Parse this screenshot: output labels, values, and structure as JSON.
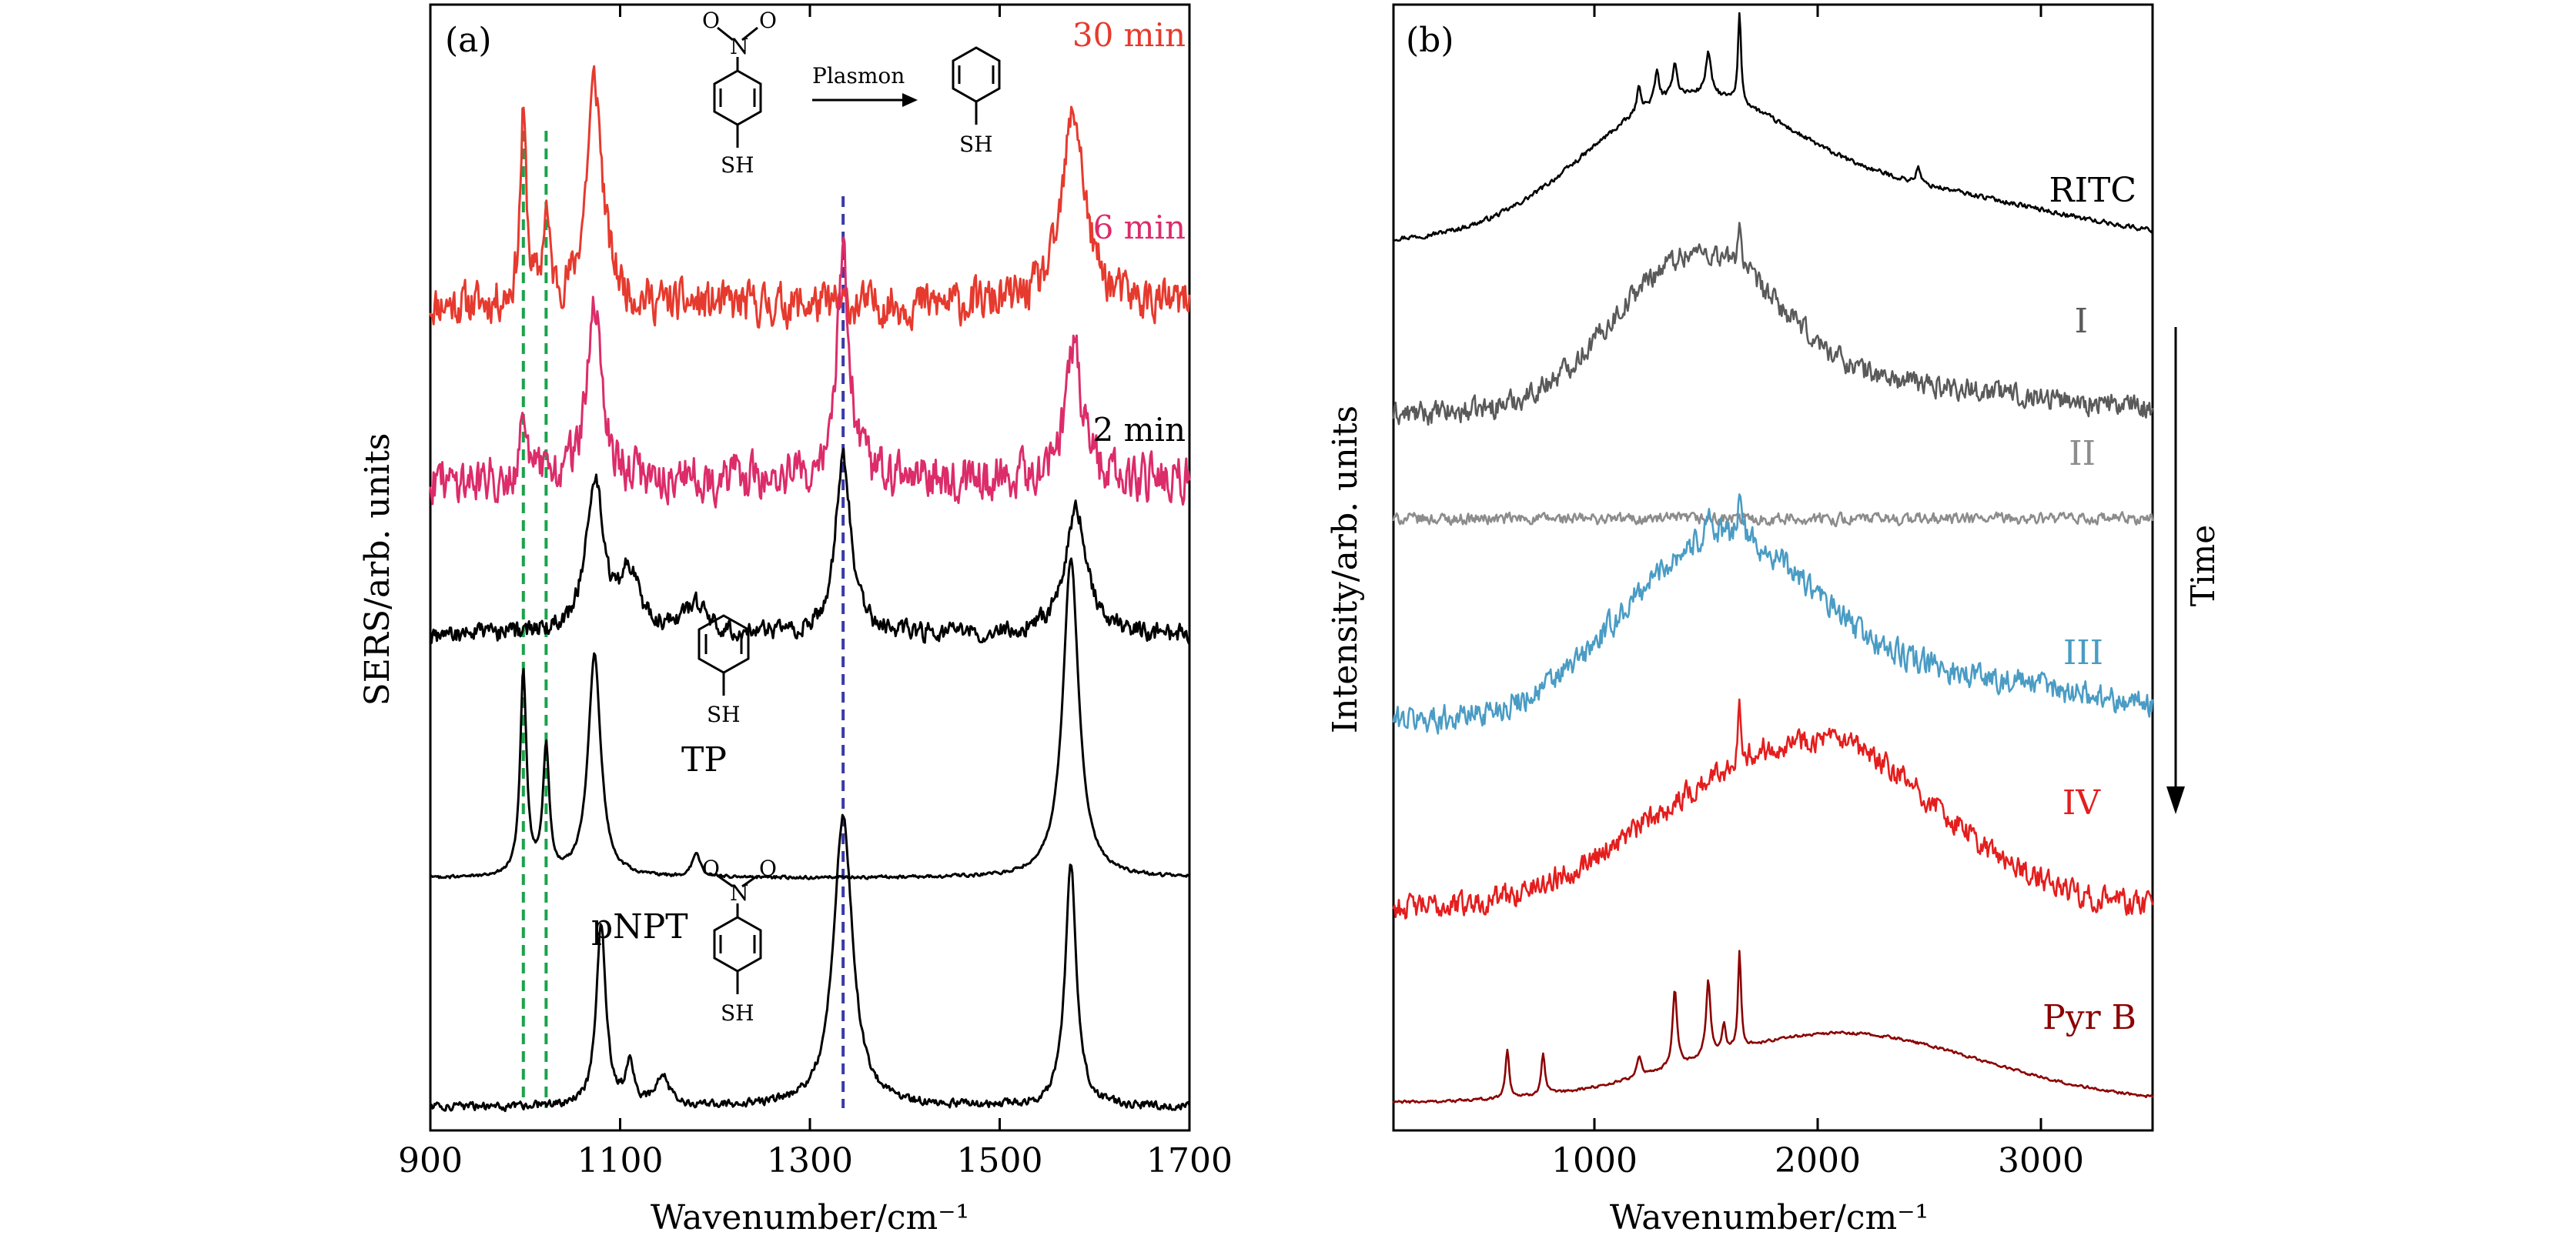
{
  "figure": {
    "panel_a_label": "(a)",
    "panel_b_label": "(b)",
    "reaction_label": "Plasmon",
    "sh_label": "SH",
    "oxygen_label": "O",
    "nitrogen_label": "N",
    "time_label": "Time"
  },
  "colors": {
    "red": "#e63a2e",
    "pink": "#dc2c6a",
    "black": "#000000",
    "gray_dark": "#5a5a5a",
    "gray_light": "#8c8c8c",
    "blue": "#4a9cc4",
    "bright_red": "#e41e1e",
    "dark_red": "#8b0000",
    "green_guide": "#1aa34a",
    "blue_guide": "#3a3aa8"
  },
  "chart_data": [
    {
      "type": "line",
      "panel": "(a)",
      "xlabel": "Wavenumber/cm⁻¹",
      "ylabel": "SERS/arb. units",
      "xlim": [
        900,
        1700
      ],
      "xticks": [
        "900",
        "1100",
        "1300",
        "1500",
        "1700"
      ],
      "y_ticks_shown": false,
      "guide_lines": [
        {
          "x": 998,
          "color": "green",
          "style": "dashed"
        },
        {
          "x": 1022,
          "color": "green",
          "style": "dashed"
        },
        {
          "x": 1335,
          "color": "blue",
          "style": "dashed"
        }
      ],
      "series": [
        {
          "name": "30 min",
          "color": "#e63a2e",
          "offset": 4.25,
          "noise": 0.16,
          "peaks": [
            [
              998,
              0.95,
              4
            ],
            [
              1022,
              0.45,
              4
            ],
            [
              1073,
              1.15,
              10
            ],
            [
              1578,
              1.0,
              14
            ]
          ]
        },
        {
          "name": "6 min",
          "color": "#dc2c6a",
          "offset": 3.35,
          "noise": 0.17,
          "peaks": [
            [
              998,
              0.4,
              4
            ],
            [
              1073,
              0.85,
              10
            ],
            [
              1335,
              1.15,
              8
            ],
            [
              1578,
              0.7,
              10
            ]
          ]
        },
        {
          "name": "2 min",
          "color": "#000000",
          "offset": 2.55,
          "noise": 0.07,
          "peaks": [
            [
              1073,
              0.8,
              11
            ],
            [
              1110,
              0.3,
              12
            ],
            [
              1180,
              0.15,
              15
            ],
            [
              1335,
              0.9,
              10
            ],
            [
              1580,
              0.65,
              14
            ]
          ]
        },
        {
          "name": "TP",
          "color": "#000000",
          "offset": 1.3,
          "noise": 0.012,
          "peaks": [
            [
              998,
              1.05,
              4
            ],
            [
              1022,
              0.65,
              4
            ],
            [
              1073,
              1.15,
              8
            ],
            [
              1180,
              0.12,
              5
            ],
            [
              1575,
              1.65,
              10
            ]
          ]
        },
        {
          "name": "pNPT",
          "color": "#000000",
          "offset": 0.12,
          "noise": 0.03,
          "peaks": [
            [
              1080,
              0.95,
              6
            ],
            [
              1110,
              0.2,
              5
            ],
            [
              1145,
              0.15,
              8
            ],
            [
              1335,
              1.5,
              12
            ],
            [
              1575,
              1.25,
              7
            ]
          ]
        }
      ]
    },
    {
      "type": "line",
      "panel": "(b)",
      "xlabel": "Wavenumber/cm⁻¹",
      "ylabel": "Intensity/arb. units",
      "xlim": [
        100,
        3500
      ],
      "xticks": [
        "1000",
        "2000",
        "3000"
      ],
      "y_ticks_shown": false,
      "series": [
        {
          "name": "RITC",
          "color": "#000000",
          "offset": 6.4,
          "noise": 0.025,
          "broad": [
            [
              1400,
              0.95,
              650
            ],
            [
              2400,
              0.35,
              900
            ]
          ],
          "peaks": [
            [
              1200,
              0.18,
              12
            ],
            [
              1280,
              0.22,
              12
            ],
            [
              1360,
              0.25,
              12
            ],
            [
              1510,
              0.3,
              14
            ],
            [
              1650,
              0.65,
              8
            ],
            [
              2450,
              0.12,
              10
            ]
          ]
        },
        {
          "name": "I",
          "color": "#5a5a5a",
          "offset": 5.15,
          "noise": 0.12,
          "broad": [
            [
              1450,
              1.1,
              520
            ],
            [
              2400,
              0.2,
              900
            ]
          ],
          "peaks": [
            [
              1650,
              0.35,
              10
            ]
          ]
        },
        {
          "name": "II",
          "color": "#8c8c8c",
          "offset": 4.4,
          "noise": 0.06,
          "broad": [],
          "peaks": []
        },
        {
          "name": "III",
          "color": "#4a9cc4",
          "offset": 2.95,
          "noise": 0.14,
          "broad": [
            [
              1550,
              1.25,
              600
            ],
            [
              2600,
              0.3,
              900
            ]
          ],
          "peaks": [
            [
              1650,
              0.35,
              10
            ],
            [
              1510,
              0.25,
              10
            ]
          ]
        },
        {
          "name": "IV",
          "color": "#e41e1e",
          "offset": 1.6,
          "noise": 0.13,
          "broad": [
            [
              2000,
              1.2,
              750
            ],
            [
              1200,
              0.2,
              500
            ]
          ],
          "peaks": [
            [
              1650,
              0.4,
              10
            ]
          ]
        },
        {
          "name": "Pyr B",
          "color": "#8b0000",
          "offset": 0.2,
          "noise": 0.015,
          "broad": [
            [
              2100,
              0.5,
              900
            ]
          ],
          "peaks": [
            [
              610,
              0.35,
              10
            ],
            [
              770,
              0.3,
              10
            ],
            [
              1200,
              0.15,
              12
            ],
            [
              1360,
              0.55,
              12
            ],
            [
              1510,
              0.55,
              12
            ],
            [
              1580,
              0.2,
              10
            ],
            [
              1650,
              0.7,
              8
            ]
          ]
        }
      ]
    }
  ]
}
